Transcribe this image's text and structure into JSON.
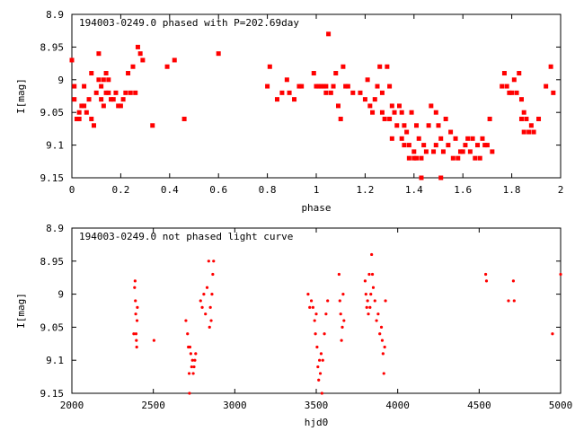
{
  "chart_data": [
    {
      "type": "scatter",
      "title": "194003-0249.0 phased with P=202.69day",
      "xlabel": "phase",
      "ylabel": "I[mag]",
      "xlim": [
        0,
        2
      ],
      "ylim": [
        8.9,
        9.15
      ],
      "y_inverted": true,
      "grid": false,
      "xticks": [
        "0",
        "0.2",
        "0.4",
        "0.6",
        "0.8",
        "1",
        "1.2",
        "1.4",
        "1.6",
        "1.8",
        "2"
      ],
      "yticks": [
        "8.9",
        "8.95",
        "9",
        "9.05",
        "9.1",
        "9.15"
      ],
      "xtick_values": [
        0,
        0.2,
        0.4,
        0.6,
        0.8,
        1.0,
        1.2,
        1.4,
        1.6,
        1.8,
        2.0
      ],
      "ytick_values": [
        8.9,
        8.95,
        9.0,
        9.05,
        9.1,
        9.15
      ],
      "marker_color": "#ff0000",
      "marker": "star",
      "points": [
        [
          0.0,
          8.97
        ],
        [
          0.01,
          9.01
        ],
        [
          0.01,
          9.03
        ],
        [
          0.02,
          9.06
        ],
        [
          0.03,
          9.05
        ],
        [
          0.03,
          9.06
        ],
        [
          0.04,
          9.04
        ],
        [
          0.05,
          9.04
        ],
        [
          0.05,
          9.01
        ],
        [
          0.06,
          9.05
        ],
        [
          0.07,
          9.03
        ],
        [
          0.08,
          8.99
        ],
        [
          0.08,
          9.06
        ],
        [
          0.09,
          9.07
        ],
        [
          0.1,
          9.02
        ],
        [
          0.11,
          8.96
        ],
        [
          0.11,
          9.0
        ],
        [
          0.12,
          9.01
        ],
        [
          0.12,
          9.03
        ],
        [
          0.13,
          9.0
        ],
        [
          0.13,
          9.04
        ],
        [
          0.14,
          8.99
        ],
        [
          0.14,
          9.02
        ],
        [
          0.15,
          9.0
        ],
        [
          0.15,
          9.02
        ],
        [
          0.16,
          9.03
        ],
        [
          0.17,
          9.03
        ],
        [
          0.18,
          9.02
        ],
        [
          0.19,
          9.04
        ],
        [
          0.2,
          9.04
        ],
        [
          0.21,
          9.03
        ],
        [
          0.22,
          9.02
        ],
        [
          0.23,
          8.99
        ],
        [
          0.24,
          9.02
        ],
        [
          0.25,
          8.98
        ],
        [
          0.26,
          9.02
        ],
        [
          0.27,
          8.95
        ],
        [
          0.28,
          8.96
        ],
        [
          0.29,
          8.97
        ],
        [
          0.33,
          9.07
        ],
        [
          0.39,
          8.98
        ],
        [
          0.42,
          8.97
        ],
        [
          0.46,
          9.06
        ],
        [
          0.6,
          8.96
        ],
        [
          0.8,
          9.01
        ],
        [
          0.81,
          8.98
        ],
        [
          0.84,
          9.03
        ],
        [
          0.86,
          9.02
        ],
        [
          0.88,
          9.0
        ],
        [
          0.89,
          9.02
        ],
        [
          0.91,
          9.03
        ],
        [
          0.93,
          9.01
        ],
        [
          0.94,
          9.01
        ],
        [
          0.99,
          8.99
        ],
        [
          1.0,
          9.01
        ],
        [
          1.01,
          9.01
        ],
        [
          1.02,
          9.01
        ],
        [
          1.03,
          9.01
        ],
        [
          1.04,
          9.01
        ],
        [
          1.04,
          9.02
        ],
        [
          1.05,
          8.93
        ],
        [
          1.06,
          9.02
        ],
        [
          1.07,
          9.01
        ],
        [
          1.08,
          8.99
        ],
        [
          1.09,
          9.04
        ],
        [
          1.1,
          9.06
        ],
        [
          1.11,
          8.98
        ],
        [
          1.12,
          9.01
        ],
        [
          1.13,
          9.01
        ],
        [
          1.15,
          9.02
        ],
        [
          1.18,
          9.02
        ],
        [
          1.2,
          9.03
        ],
        [
          1.21,
          9.0
        ],
        [
          1.22,
          9.04
        ],
        [
          1.23,
          9.05
        ],
        [
          1.24,
          9.03
        ],
        [
          1.25,
          9.01
        ],
        [
          1.26,
          8.98
        ],
        [
          1.27,
          9.02
        ],
        [
          1.27,
          9.05
        ],
        [
          1.28,
          9.06
        ],
        [
          1.29,
          8.98
        ],
        [
          1.3,
          9.01
        ],
        [
          1.3,
          9.06
        ],
        [
          1.31,
          9.04
        ],
        [
          1.31,
          9.09
        ],
        [
          1.32,
          9.05
        ],
        [
          1.33,
          9.07
        ],
        [
          1.34,
          9.04
        ],
        [
          1.35,
          9.05
        ],
        [
          1.35,
          9.09
        ],
        [
          1.36,
          9.07
        ],
        [
          1.36,
          9.1
        ],
        [
          1.37,
          9.08
        ],
        [
          1.38,
          9.1
        ],
        [
          1.38,
          9.12
        ],
        [
          1.39,
          9.05
        ],
        [
          1.4,
          9.11
        ],
        [
          1.4,
          9.12
        ],
        [
          1.41,
          9.07
        ],
        [
          1.41,
          9.12
        ],
        [
          1.42,
          9.09
        ],
        [
          1.43,
          9.12
        ],
        [
          1.43,
          9.15
        ],
        [
          1.44,
          9.1
        ],
        [
          1.45,
          9.11
        ],
        [
          1.46,
          9.07
        ],
        [
          1.47,
          9.04
        ],
        [
          1.48,
          9.11
        ],
        [
          1.49,
          9.05
        ],
        [
          1.49,
          9.1
        ],
        [
          1.5,
          9.07
        ],
        [
          1.51,
          9.09
        ],
        [
          1.51,
          9.15
        ],
        [
          1.52,
          9.11
        ],
        [
          1.53,
          9.06
        ],
        [
          1.54,
          9.1
        ],
        [
          1.55,
          9.08
        ],
        [
          1.56,
          9.12
        ],
        [
          1.57,
          9.09
        ],
        [
          1.58,
          9.12
        ],
        [
          1.59,
          9.11
        ],
        [
          1.6,
          9.11
        ],
        [
          1.61,
          9.1
        ],
        [
          1.62,
          9.09
        ],
        [
          1.63,
          9.11
        ],
        [
          1.64,
          9.09
        ],
        [
          1.65,
          9.12
        ],
        [
          1.66,
          9.1
        ],
        [
          1.67,
          9.12
        ],
        [
          1.68,
          9.09
        ],
        [
          1.69,
          9.1
        ],
        [
          1.7,
          9.1
        ],
        [
          1.71,
          9.06
        ],
        [
          1.72,
          9.11
        ],
        [
          1.76,
          9.01
        ],
        [
          1.77,
          8.99
        ],
        [
          1.78,
          9.01
        ],
        [
          1.79,
          9.02
        ],
        [
          1.8,
          9.02
        ],
        [
          1.81,
          9.0
        ],
        [
          1.82,
          9.02
        ],
        [
          1.83,
          8.99
        ],
        [
          1.84,
          9.03
        ],
        [
          1.84,
          9.06
        ],
        [
          1.85,
          9.05
        ],
        [
          1.85,
          9.08
        ],
        [
          1.86,
          9.06
        ],
        [
          1.87,
          9.08
        ],
        [
          1.88,
          9.07
        ],
        [
          1.89,
          9.08
        ],
        [
          1.91,
          9.06
        ],
        [
          1.94,
          9.01
        ],
        [
          1.96,
          8.98
        ],
        [
          1.97,
          9.02
        ]
      ]
    },
    {
      "type": "scatter",
      "title": "194003-0249.0 not phased light curve",
      "xlabel": "hjd0",
      "ylabel": "I[mag]",
      "xlim": [
        2000,
        5000
      ],
      "ylim": [
        8.9,
        9.15
      ],
      "y_inverted": true,
      "grid": false,
      "xticks": [
        "2000",
        "2500",
        "3000",
        "3500",
        "4000",
        "4500",
        "5000"
      ],
      "yticks": [
        "8.9",
        "8.95",
        "9",
        "9.05",
        "9.1",
        "9.15"
      ],
      "xtick_values": [
        2000,
        2500,
        3000,
        3500,
        4000,
        4500,
        5000
      ],
      "ytick_values": [
        8.9,
        8.95,
        9.0,
        9.05,
        9.1,
        9.15
      ],
      "marker_color": "#ff0000",
      "marker": "dot",
      "points": [
        [
          2380,
          9.06
        ],
        [
          2385,
          8.99
        ],
        [
          2388,
          8.98
        ],
        [
          2390,
          9.01
        ],
        [
          2392,
          9.03
        ],
        [
          2394,
          9.06
        ],
        [
          2396,
          9.07
        ],
        [
          2398,
          9.08
        ],
        [
          2400,
          9.04
        ],
        [
          2402,
          9.02
        ],
        [
          2504,
          9.07
        ],
        [
          2700,
          9.04
        ],
        [
          2710,
          9.06
        ],
        [
          2715,
          9.08
        ],
        [
          2720,
          9.12
        ],
        [
          2722,
          9.15
        ],
        [
          2725,
          9.08
        ],
        [
          2730,
          9.09
        ],
        [
          2735,
          9.11
        ],
        [
          2740,
          9.1
        ],
        [
          2745,
          9.12
        ],
        [
          2750,
          9.11
        ],
        [
          2755,
          9.1
        ],
        [
          2760,
          9.09
        ],
        [
          2790,
          9.01
        ],
        [
          2800,
          9.02
        ],
        [
          2810,
          9.0
        ],
        [
          2820,
          9.03
        ],
        [
          2830,
          8.99
        ],
        [
          2840,
          8.95
        ],
        [
          2845,
          9.05
        ],
        [
          2850,
          9.02
        ],
        [
          2855,
          9.04
        ],
        [
          2860,
          9.0
        ],
        [
          2865,
          8.97
        ],
        [
          2870,
          8.95
        ],
        [
          3450,
          9.0
        ],
        [
          3460,
          9.02
        ],
        [
          3470,
          9.01
        ],
        [
          3480,
          9.02
        ],
        [
          3490,
          9.04
        ],
        [
          3495,
          9.06
        ],
        [
          3500,
          9.03
        ],
        [
          3505,
          9.08
        ],
        [
          3510,
          9.11
        ],
        [
          3515,
          9.13
        ],
        [
          3520,
          9.1
        ],
        [
          3525,
          9.12
        ],
        [
          3530,
          9.09
        ],
        [
          3535,
          9.15
        ],
        [
          3540,
          9.1
        ],
        [
          3550,
          9.06
        ],
        [
          3560,
          9.03
        ],
        [
          3570,
          9.01
        ],
        [
          3640,
          8.97
        ],
        [
          3645,
          9.01
        ],
        [
          3650,
          9.03
        ],
        [
          3655,
          9.07
        ],
        [
          3660,
          9.05
        ],
        [
          3665,
          9.0
        ],
        [
          3670,
          9.04
        ],
        [
          3800,
          8.98
        ],
        [
          3805,
          9.0
        ],
        [
          3810,
          9.02
        ],
        [
          3815,
          9.01
        ],
        [
          3820,
          9.03
        ],
        [
          3825,
          8.97
        ],
        [
          3830,
          9.02
        ],
        [
          3835,
          9.0
        ],
        [
          3840,
          8.94
        ],
        [
          3845,
          8.97
        ],
        [
          3850,
          8.99
        ],
        [
          3860,
          9.01
        ],
        [
          3870,
          9.04
        ],
        [
          3880,
          9.03
        ],
        [
          3890,
          9.06
        ],
        [
          3900,
          9.05
        ],
        [
          3905,
          9.07
        ],
        [
          3910,
          9.09
        ],
        [
          3915,
          9.12
        ],
        [
          3920,
          9.08
        ],
        [
          3925,
          9.01
        ],
        [
          4540,
          8.97
        ],
        [
          4545,
          8.98
        ],
        [
          4680,
          9.01
        ],
        [
          4710,
          8.98
        ],
        [
          4715,
          9.01
        ],
        [
          4950,
          9.06
        ],
        [
          5000,
          8.97
        ]
      ]
    }
  ]
}
